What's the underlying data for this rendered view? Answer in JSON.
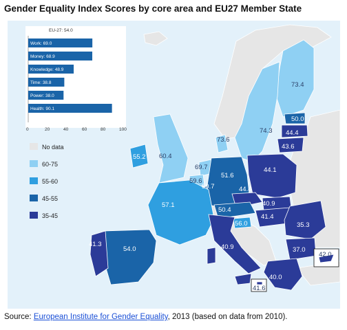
{
  "title": "Gender Equality Index Scores by core area and EU27 Member State",
  "source": {
    "prefix": "Source: ",
    "link_text": "European Institute for Gender Equality",
    "suffix": ", 2013 (based on data from 2010)."
  },
  "colors": {
    "background": "#e3f1fa",
    "no_data": "#e6e6e6",
    "band_60_75": "#8fd0f3",
    "band_55_60": "#2f9fe0",
    "band_45_55": "#1a64a8",
    "band_35_45": "#2b3b98",
    "bar": "#1a64a8"
  },
  "legend": {
    "items": [
      {
        "label": "No data",
        "color": "#e6e6e6"
      },
      {
        "label": "60-75",
        "color": "#8fd0f3"
      },
      {
        "label": "55-60",
        "color": "#2f9fe0"
      },
      {
        "label": "45-55",
        "color": "#1a64a8"
      },
      {
        "label": "35-45",
        "color": "#2b3b98"
      }
    ]
  },
  "chart_data": {
    "type": "bar",
    "title": "EU-27: 54.0",
    "categories": [
      "Work: 69.0",
      "Money: 68.9",
      "Knowledge: 48.9",
      "Time: 38.8",
      "Power: 38.0",
      "Health: 90.1"
    ],
    "values": [
      69.0,
      68.9,
      48.9,
      38.8,
      38.0,
      90.1
    ],
    "xlim": [
      0,
      100
    ],
    "xticks": [
      "0",
      "20",
      "40",
      "60",
      "80",
      "100"
    ]
  },
  "map_values": {
    "finland": "73.4",
    "sweden": "74.3",
    "estonia": "50.0",
    "latvia": "44.4",
    "lithuania": "43.6",
    "denmark": "73.6",
    "ireland": "55.2",
    "uk": "60.4",
    "netherlands": "69.7",
    "belgium": "59.6",
    "luxembourg": "50.7",
    "germany": "51.6",
    "poland": "44.1",
    "czechia": "44.4",
    "slovakia": "40.9",
    "austria": "50.4",
    "hungary": "41.4",
    "slovenia": "56.0",
    "romania": "35.3",
    "bulgaria": "37.0",
    "greece": "40.0",
    "cyprus": "42.0",
    "malta": "41.6",
    "france": "57.1",
    "spain": "54.0",
    "portugal": "41.3",
    "italy": "40.9"
  }
}
